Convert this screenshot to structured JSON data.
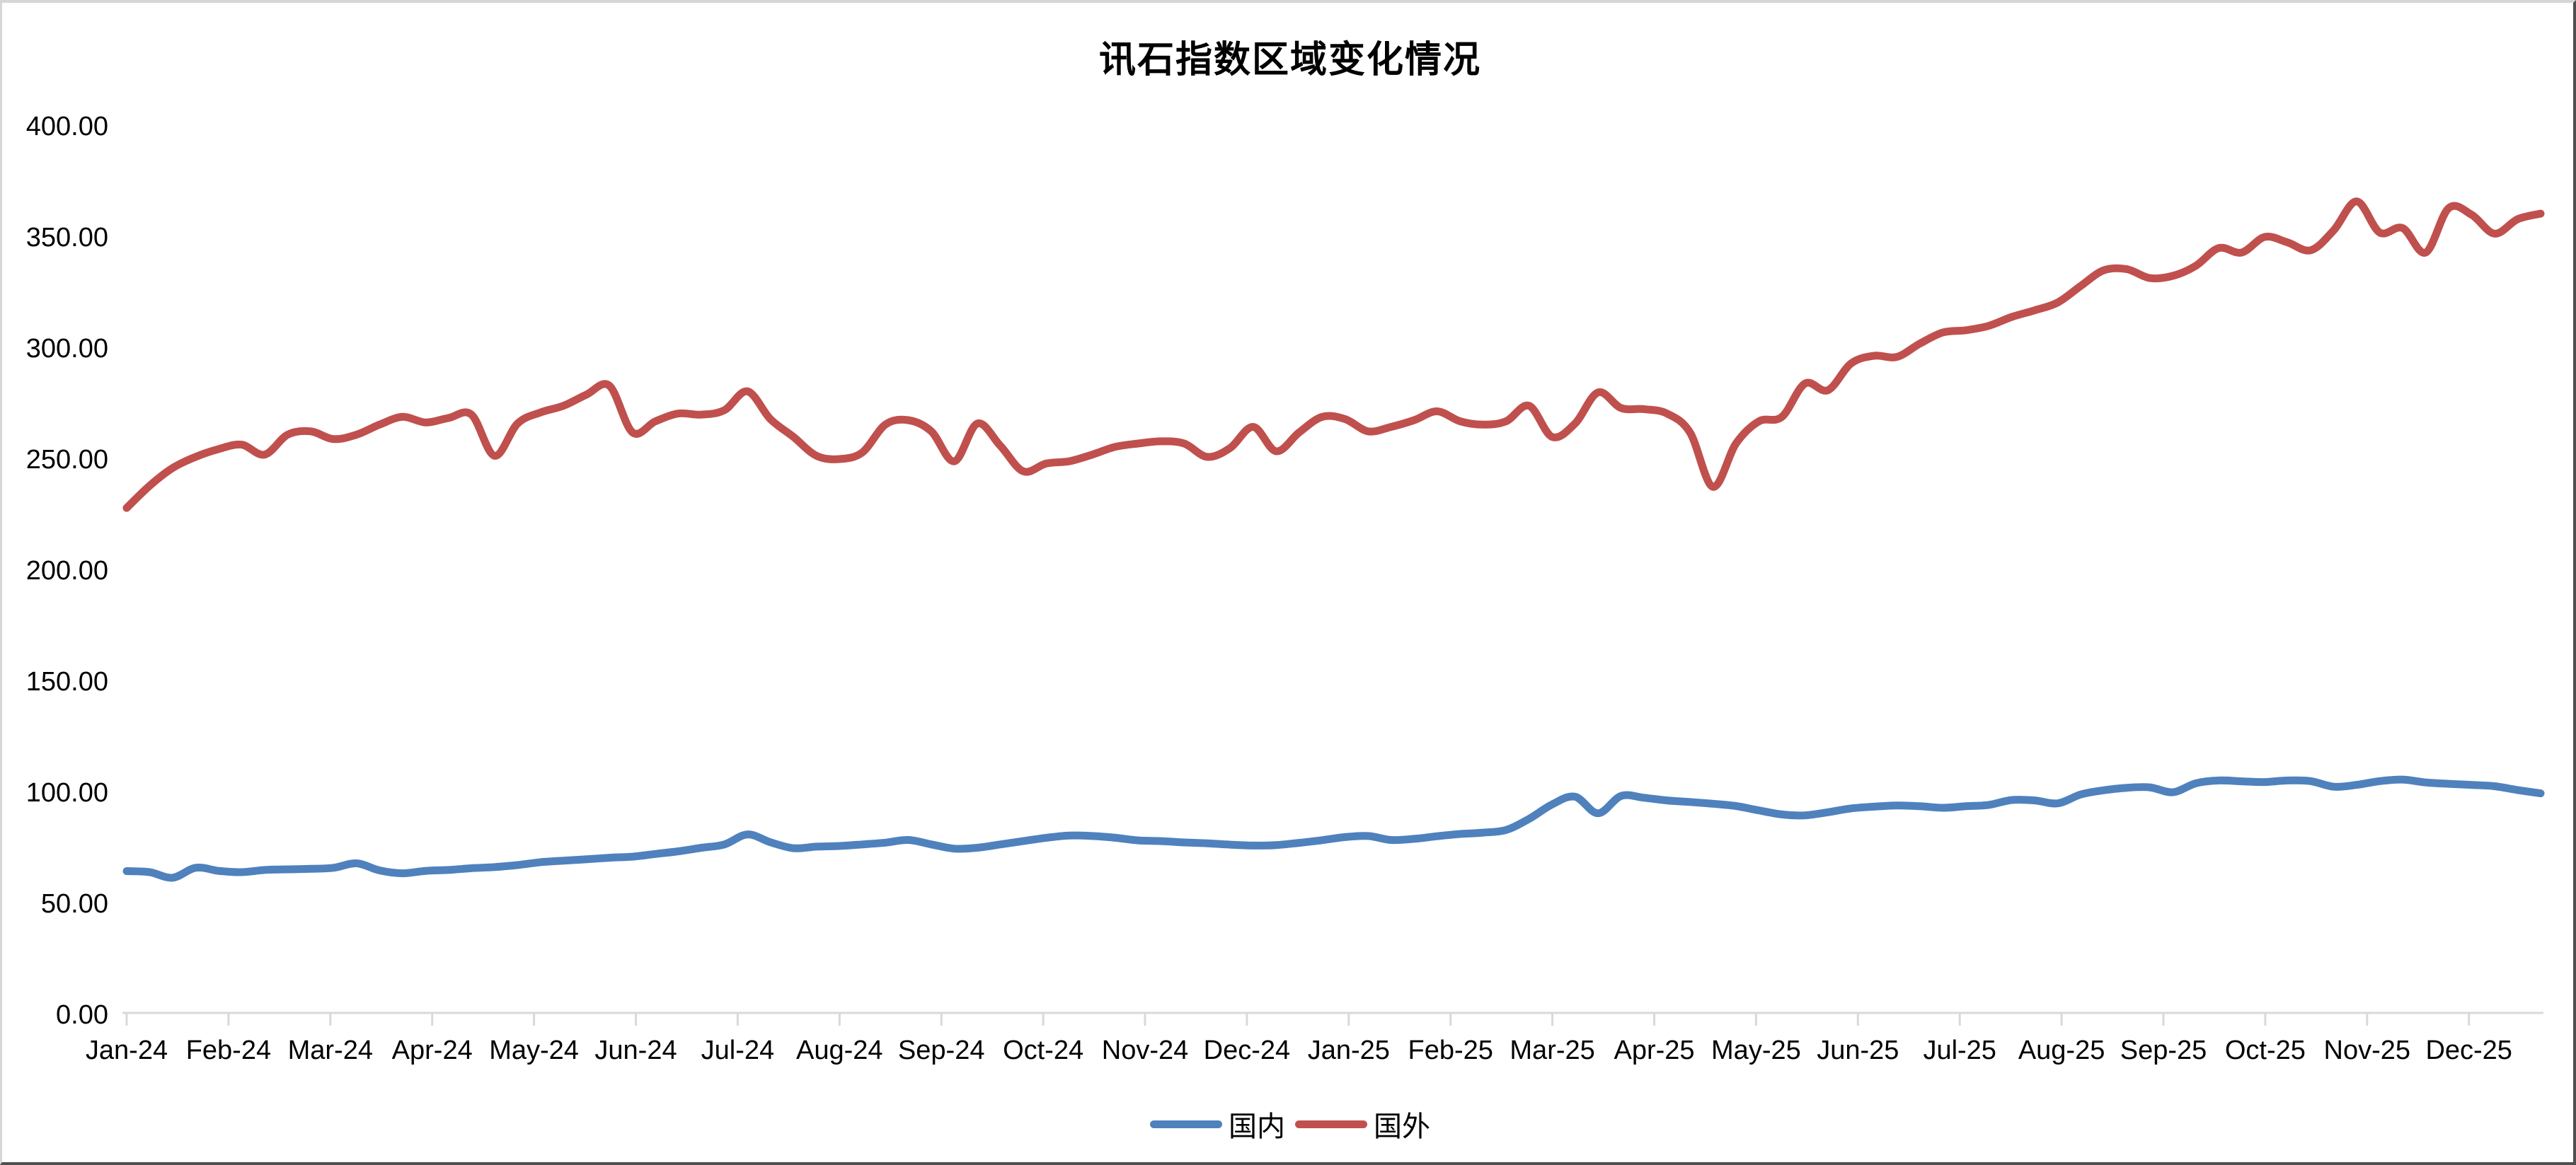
{
  "title": "讯石指数区域变化情况",
  "legend": {
    "domestic_label": "国内",
    "foreign_label": "国外"
  },
  "colors": {
    "domestic": "#4F81BD",
    "foreign": "#C0504D",
    "axis": "#D9D9D9",
    "text": "#000000"
  },
  "chart_data": {
    "type": "line",
    "title": "讯石指数区域变化情况",
    "xlabel": "",
    "ylabel": "",
    "ylim": [
      0,
      400
    ],
    "y_tick_values": [
      0,
      50,
      100,
      150,
      200,
      250,
      300,
      350,
      400
    ],
    "y_tick_labels": [
      "0.00",
      "50.00",
      "100.00",
      "150.00",
      "200.00",
      "250.00",
      "300.00",
      "350.00",
      "400.00"
    ],
    "x_tick_labels": [
      "Jan-24",
      "Feb-24",
      "Mar-24",
      "Apr-24",
      "May-24",
      "Jun-24",
      "Jul-24",
      "Aug-24",
      "Sep-24",
      "Oct-24",
      "Nov-24",
      "Dec-24",
      "Jan-25",
      "Feb-25",
      "Mar-25",
      "Apr-25",
      "May-25",
      "Jun-25",
      "Jul-25",
      "Aug-25",
      "Sep-25",
      "Oct-25",
      "Nov-25",
      "Dec-25"
    ],
    "frequency": "weekly",
    "grid": false,
    "smooth": true,
    "legend_position": "bottom",
    "series": [
      {
        "name": "国内",
        "color": "#4F81BD",
        "values": [
          64.5,
          64,
          61.5,
          66,
          64.6,
          64,
          65,
          65.3,
          65.5,
          66,
          68,
          64.8,
          63.5,
          64.6,
          65,
          65.8,
          66.3,
          67.2,
          68.5,
          69.2,
          69.8,
          70.5,
          71,
          72.2,
          73.4,
          75,
          76.5,
          81,
          77.5,
          74.8,
          75.5,
          75.8,
          76.5,
          77.3,
          78.5,
          76.5,
          74.6,
          75,
          76.5,
          78,
          79.5,
          80.5,
          80.3,
          79.5,
          78.3,
          78,
          77.4,
          77,
          76.4,
          76,
          76.2,
          77.2,
          78.4,
          79.8,
          80.3,
          78.5,
          79,
          80.2,
          81.2,
          81.8,
          83,
          88,
          94.5,
          98,
          90.5,
          98.3,
          97.5,
          96.3,
          95.6,
          94.8,
          93.8,
          91.8,
          90,
          89.6,
          91,
          92.7,
          93.5,
          94,
          93.7,
          93,
          93.7,
          94.3,
          96.5,
          96.3,
          95,
          99,
          100.9,
          102,
          102.2,
          100,
          104,
          105.3,
          104.9,
          104.6,
          105.3,
          105,
          102.5,
          103.3,
          105,
          105.7,
          104.4,
          103.8,
          103.3,
          102.7,
          101,
          99.5
        ]
      },
      {
        "name": "国外",
        "color": "#C0504D",
        "values": [
          228,
          238,
          246,
          251,
          254.5,
          256.5,
          252,
          261,
          262.5,
          259,
          261,
          265.5,
          269,
          266.5,
          268.5,
          270,
          251.5,
          266,
          271,
          274,
          279,
          283,
          262,
          267,
          270.5,
          270,
          272,
          280.5,
          268,
          260,
          251.5,
          250,
          253,
          265.5,
          267.5,
          262.5,
          249,
          266,
          256,
          244.5,
          248,
          249,
          252,
          255.5,
          257,
          258,
          257,
          251,
          255,
          264.5,
          253.5,
          262,
          269,
          268,
          262.5,
          264.5,
          267.5,
          271.5,
          267,
          265.5,
          267,
          274,
          260,
          266,
          280,
          273,
          272.5,
          270.5,
          262,
          237.5,
          257,
          267,
          269,
          284,
          281,
          293,
          296.5,
          296,
          302,
          307,
          308,
          310,
          314,
          317,
          320.5,
          328,
          335,
          335.5,
          331.5,
          332.5,
          337,
          345,
          343,
          350,
          347.5,
          344,
          353,
          366,
          352,
          354,
          343,
          363,
          360,
          351.5,
          358,
          360.5
        ]
      }
    ]
  }
}
